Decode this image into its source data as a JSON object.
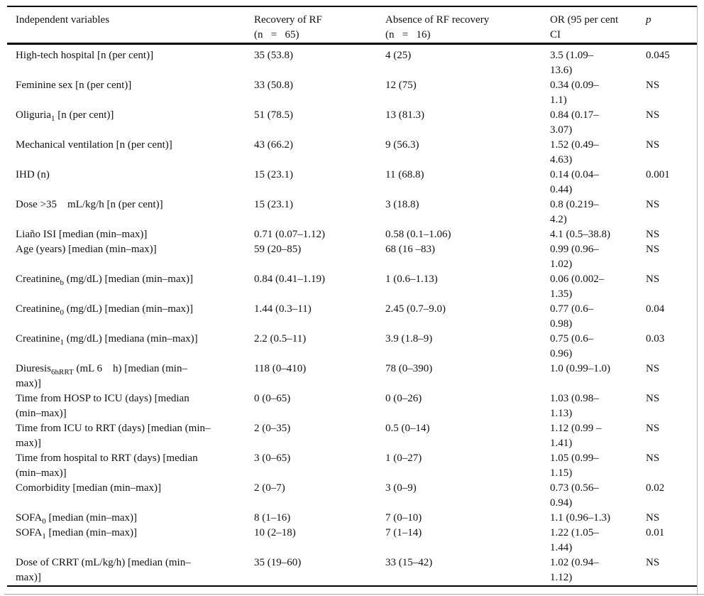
{
  "table": {
    "columns": [
      {
        "label": "Independent variables"
      },
      {
        "label": "Recovery of RF\n(n   =   65)"
      },
      {
        "label": "Absence of RF recovery\n(n   =   16)"
      },
      {
        "label": "OR (95 per cent\nCI"
      },
      {
        "label": "p"
      }
    ],
    "rows": [
      {
        "variable": "High-tech hospital [n (per cent)]",
        "recovery": "35 (53.8)",
        "absence": "4 (25)",
        "or": "3.5 (1.09–\n13.6)",
        "p": "0.045"
      },
      {
        "variable": "Feminine sex [n (per cent)]",
        "recovery": "33 (50.8)",
        "absence": "12 (75)",
        "or": "0.34 (0.09–\n1.1)",
        "p": "NS"
      },
      {
        "variable": "Oliguria~1~ [n (per cent)]",
        "recovery": "51 (78.5)",
        "absence": "13 (81.3)",
        "or": "0.84 (0.17–\n3.07)",
        "p": "NS"
      },
      {
        "variable": "Mechanical ventilation [n (per cent)]",
        "recovery": "43 (66.2)",
        "absence": "9 (56.3)",
        "or": "1.52 (0.49–\n4.63)",
        "p": "NS"
      },
      {
        "variable": "IHD (n)",
        "recovery": "15 (23.1)",
        "absence": "11 (68.8)",
        "or": "0.14 (0.04–\n0.44)",
        "p": "0.001"
      },
      {
        "variable": "Dose >35    mL/kg/h [n (per cent)]",
        "recovery": "15 (23.1)",
        "absence": "3 (18.8)",
        "or": "0.8 (0.219–\n4.2)",
        "p": "NS"
      },
      {
        "variable": "Liaño ISI [median (min–max)]",
        "recovery": "0.71 (0.07–1.12)",
        "absence": "0.58 (0.1–1.06)",
        "or": "4.1 (0.5–38.8)",
        "p": "NS"
      },
      {
        "variable": "Age (years) [median (min–max)]",
        "recovery": "59 (20–85)",
        "absence": "68 (16 –83)",
        "or": "0.99 (0.96–\n1.02)",
        "p": "NS"
      },
      {
        "variable": "Creatinine~b~ (mg/dL) [median (min–max)]",
        "recovery": "0.84 (0.41–1.19)",
        "absence": "1 (0.6–1.13)",
        "or": "0.06 (0.002–\n1.35)",
        "p": "NS"
      },
      {
        "variable": "Creatinine~0~ (mg/dL) [median (min–max)]",
        "recovery": "1.44 (0.3–11)",
        "absence": "2.45 (0.7–9.0)",
        "or": "0.77 (0.6–\n0.98)",
        "p": "0.04"
      },
      {
        "variable": "Creatinine~1~ (mg/dL) [mediana (min–max)]",
        "recovery": "2.2 (0.5–11)",
        "absence": "3.9 (1.8–9)",
        "or": "0.75 (0.6–\n0.96)",
        "p": "0.03"
      },
      {
        "variable": "Diuresis~6hRRT~ (mL 6    h) [median (min–\nmax)]",
        "recovery": "118 (0–410)",
        "absence": "78 (0–390)",
        "or": "1.0 (0.99–1.0)",
        "p": "NS"
      },
      {
        "variable": "Time from HOSP to ICU (days) [median\n(min–max)]",
        "recovery": "0 (0–65)",
        "absence": "0 (0–26)",
        "or": "1.03 (0.98–\n1.13)",
        "p": "NS"
      },
      {
        "variable": "Time from ICU to RRT (days) [median (min–\nmax)]",
        "recovery": "2 (0–35)",
        "absence": "0.5 (0–14)",
        "or": "1.12 (0.99 –\n1.41)",
        "p": "NS"
      },
      {
        "variable": "Time from hospital to RRT (days) [median\n(min–max)]",
        "recovery": "3 (0–65)",
        "absence": "1 (0–27)",
        "or": "1.05 (0.99–\n1.15)",
        "p": "NS"
      },
      {
        "variable": "Comorbidity [median (min–max)]",
        "recovery": "2 (0–7)",
        "absence": "3 (0–9)",
        "or": "0.73 (0.56–\n0.94)",
        "p": "0.02"
      },
      {
        "variable": "SOFA~0~ [median (min–max)]",
        "recovery": "8 (1–16)",
        "absence": "7 (0–10)",
        "or": "1.1 (0.96–1.3)",
        "p": "NS"
      },
      {
        "variable": "SOFA~1~ [median (min–max)]",
        "recovery": "10 (2–18)",
        "absence": "7 (1–14)",
        "or": "1.22 (1.05–\n1.44)",
        "p": "0.01"
      },
      {
        "variable": "Dose of CRRT (mL/kg/h) [median (min–\nmax)]",
        "recovery": "35 (19–60)",
        "absence": "33 (15–42)",
        "or": "1.02 (0.94–\n1.12)",
        "p": "NS"
      }
    ]
  }
}
